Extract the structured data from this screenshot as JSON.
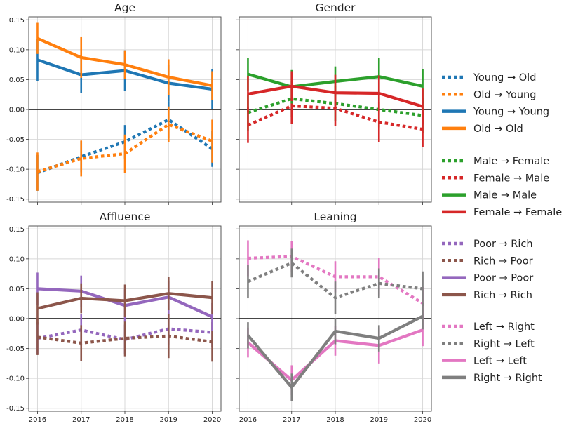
{
  "chart_data": [
    {
      "type": "line",
      "title": "Age",
      "x": [
        2016,
        2017,
        2018,
        2019,
        2020
      ],
      "ylim": [
        -0.155,
        0.155
      ],
      "yticks": [
        "0.15",
        "0.10",
        "0.05",
        "0.00",
        "-0.05",
        "-0.10",
        "-0.15"
      ],
      "ytick_values": [
        0.15,
        0.1,
        0.05,
        0.0,
        -0.05,
        -0.1,
        -0.15
      ],
      "xticks": [
        "2016",
        "2017",
        "2018",
        "2019",
        "2020"
      ],
      "series": [
        {
          "name": "Young → Old",
          "style": "dotted",
          "color": "#1f77b4",
          "values": [
            -0.106,
            -0.079,
            -0.054,
            -0.017,
            -0.066
          ],
          "err": [
            0.03,
            0.026,
            0.028,
            0.03,
            0.03
          ]
        },
        {
          "name": "Old → Young",
          "style": "dotted",
          "color": "#ff7f0e",
          "values": [
            -0.104,
            -0.082,
            -0.074,
            -0.025,
            -0.053
          ],
          "err": [
            0.032,
            0.03,
            0.032,
            0.03,
            0.036
          ]
        },
        {
          "name": "Young → Young",
          "style": "solid",
          "color": "#1f77b4",
          "values": [
            0.083,
            0.058,
            0.065,
            0.044,
            0.034
          ],
          "err": [
            0.035,
            0.031,
            0.034,
            0.031,
            0.034
          ]
        },
        {
          "name": "Old → Old",
          "style": "solid",
          "color": "#ff7f0e",
          "values": [
            0.119,
            0.087,
            0.075,
            0.054,
            0.04
          ],
          "err": [
            0.026,
            0.034,
            0.024,
            0.03,
            0.024
          ]
        }
      ]
    },
    {
      "type": "line",
      "title": "Gender",
      "x": [
        2016,
        2017,
        2018,
        2019,
        2020
      ],
      "ylim": [
        -0.155,
        0.155
      ],
      "xticks": [
        "2016",
        "2017",
        "2018",
        "2019",
        "2020"
      ],
      "series": [
        {
          "name": "Male → Female",
          "style": "dotted",
          "color": "#2ca02c",
          "values": [
            -0.005,
            0.018,
            0.01,
            0.0,
            -0.01
          ],
          "err": [
            0.03,
            0.03,
            0.03,
            0.03,
            0.03
          ]
        },
        {
          "name": "Female → Male",
          "style": "dotted",
          "color": "#d62728",
          "values": [
            -0.026,
            0.006,
            0.002,
            -0.021,
            -0.033
          ],
          "err": [
            0.03,
            0.03,
            0.03,
            0.034,
            0.03
          ]
        },
        {
          "name": "Male → Male",
          "style": "solid",
          "color": "#2ca02c",
          "values": [
            0.059,
            0.038,
            0.047,
            0.055,
            0.039
          ],
          "err": [
            0.027,
            0.028,
            0.025,
            0.031,
            0.029
          ]
        },
        {
          "name": "Female → Female",
          "style": "solid",
          "color": "#d62728",
          "values": [
            0.026,
            0.039,
            0.028,
            0.027,
            0.005
          ],
          "err": [
            0.03,
            0.025,
            0.03,
            0.03,
            0.03
          ]
        }
      ]
    },
    {
      "type": "line",
      "title": "Affluence",
      "x": [
        2016,
        2017,
        2018,
        2019,
        2020
      ],
      "ylim": [
        -0.155,
        0.155
      ],
      "yticks": [
        "0.15",
        "0.10",
        "0.05",
        "0.00",
        "-0.05",
        "-0.10",
        "-0.15"
      ],
      "ytick_values": [
        0.15,
        0.1,
        0.05,
        0.0,
        -0.05,
        -0.1,
        -0.15
      ],
      "xticks": [
        "2016",
        "2017",
        "2018",
        "2019",
        "2020"
      ],
      "series": [
        {
          "name": "Poor → Rich",
          "style": "dotted",
          "color": "#9467bd",
          "values": [
            -0.033,
            -0.019,
            -0.035,
            -0.017,
            -0.023
          ],
          "err": [
            0.027,
            0.027,
            0.025,
            0.027,
            0.025
          ]
        },
        {
          "name": "Rich → Poor",
          "style": "dotted",
          "color": "#8c564b",
          "values": [
            -0.031,
            -0.041,
            -0.033,
            -0.029,
            -0.039
          ],
          "err": [
            0.03,
            0.03,
            0.03,
            0.037,
            0.033
          ]
        },
        {
          "name": "Poor → Poor",
          "style": "solid",
          "color": "#9467bd",
          "values": [
            0.05,
            0.046,
            0.022,
            0.036,
            0.003
          ],
          "err": [
            0.027,
            0.026,
            0.027,
            0.027,
            0.023
          ]
        },
        {
          "name": "Rich → Rich",
          "style": "solid",
          "color": "#8c564b",
          "values": [
            0.017,
            0.034,
            0.03,
            0.042,
            0.035
          ],
          "err": [
            0.027,
            0.025,
            0.027,
            0.028,
            0.028
          ]
        }
      ]
    },
    {
      "type": "line",
      "title": "Leaning",
      "x": [
        2016,
        2017,
        2018,
        2019,
        2020
      ],
      "ylim": [
        -0.155,
        0.155
      ],
      "xticks": [
        "2016",
        "2017",
        "2018",
        "2019",
        "2020"
      ],
      "series": [
        {
          "name": "Left → Right",
          "style": "dotted",
          "color": "#e377c2",
          "values": [
            0.101,
            0.104,
            0.07,
            0.07,
            0.026
          ],
          "err": [
            0.03,
            0.026,
            0.026,
            0.032,
            0.027
          ]
        },
        {
          "name": "Right → Left",
          "style": "dotted",
          "color": "#7f7f7f",
          "values": [
            0.062,
            0.093,
            0.035,
            0.059,
            0.05
          ],
          "err": [
            0.028,
            0.024,
            0.027,
            0.025,
            0.029
          ]
        },
        {
          "name": "Left → Left",
          "style": "solid",
          "color": "#e377c2",
          "values": [
            -0.04,
            -0.103,
            -0.037,
            -0.045,
            -0.019
          ],
          "err": [
            0.025,
            0.025,
            0.025,
            0.03,
            0.027
          ]
        },
        {
          "name": "Right → Right",
          "style": "solid",
          "color": "#7f7f7f",
          "values": [
            -0.028,
            -0.115,
            -0.021,
            -0.033,
            0.004
          ],
          "err": [
            0.022,
            0.023,
            0.022,
            0.022,
            0.022
          ]
        }
      ]
    }
  ]
}
